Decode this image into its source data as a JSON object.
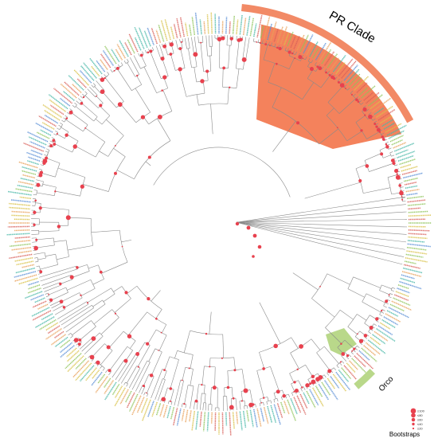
{
  "figure": {
    "type": "circular-phylogenetic-tree",
    "colors": {
      "branch": "#8a8a8a",
      "bootstrap_node": "#e8414e",
      "pr_clade_highlight": "#f4825c",
      "pr_clade_band": "#f28a66",
      "orco_highlight": "#b9d88a",
      "leaf_label_palette": [
        "#49b8a8",
        "#e8a15a",
        "#8fc45a",
        "#5a8fd6",
        "#d9c24a",
        "#d9605a"
      ]
    },
    "clades": {
      "pr": {
        "label": "PR  Clade"
      },
      "orco": {
        "label": "Orco"
      }
    },
    "legend": {
      "title": "Bootstraps",
      "items": [
        {
          "label": "≤100",
          "size_rank": 5
        },
        {
          "label": "≤80",
          "size_rank": 4
        },
        {
          "label": "≤60",
          "size_rank": 3
        },
        {
          "label": "≤40",
          "size_rank": 2
        },
        {
          "label": "≤20",
          "size_rank": 1
        }
      ]
    }
  }
}
